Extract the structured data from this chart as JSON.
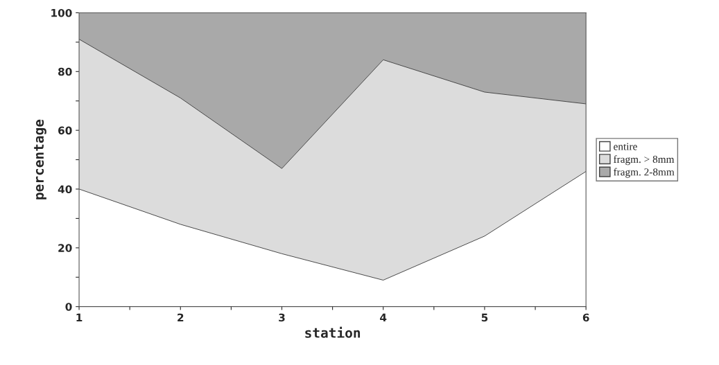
{
  "chart_data": {
    "type": "area",
    "stacked": true,
    "xlabel": "station",
    "ylabel": "percentage",
    "x": [
      1,
      2,
      3,
      4,
      5,
      6
    ],
    "series": [
      {
        "name": "entire",
        "color": "#ffffff",
        "values": [
          40,
          28,
          18,
          9,
          24,
          46
        ]
      },
      {
        "name": "fragm. > 8mm",
        "color": "#dcdcdc",
        "values": [
          51,
          43,
          29,
          75,
          49,
          23
        ]
      },
      {
        "name": "fragm. 2-8mm",
        "color": "#a9a9a9",
        "values": [
          9,
          29,
          53,
          16,
          27,
          31
        ]
      }
    ],
    "xlim": [
      1,
      6
    ],
    "ylim": [
      0,
      100
    ],
    "xticks": [
      1,
      {
        "value": 1.5,
        "label": null
      },
      2,
      {
        "value": 2.5,
        "label": null
      },
      3,
      {
        "value": 3.5,
        "label": null
      },
      4,
      {
        "value": 4.5,
        "label": null
      },
      5,
      {
        "value": 5.5,
        "label": null
      },
      6
    ],
    "yticks": [
      0,
      {
        "value": 10,
        "label": null
      },
      20,
      {
        "value": 30,
        "label": null
      },
      40,
      {
        "value": 50,
        "label": null
      },
      60,
      {
        "value": 70,
        "label": null
      },
      80,
      {
        "value": 90,
        "label": null
      },
      100
    ],
    "legend": "right"
  }
}
